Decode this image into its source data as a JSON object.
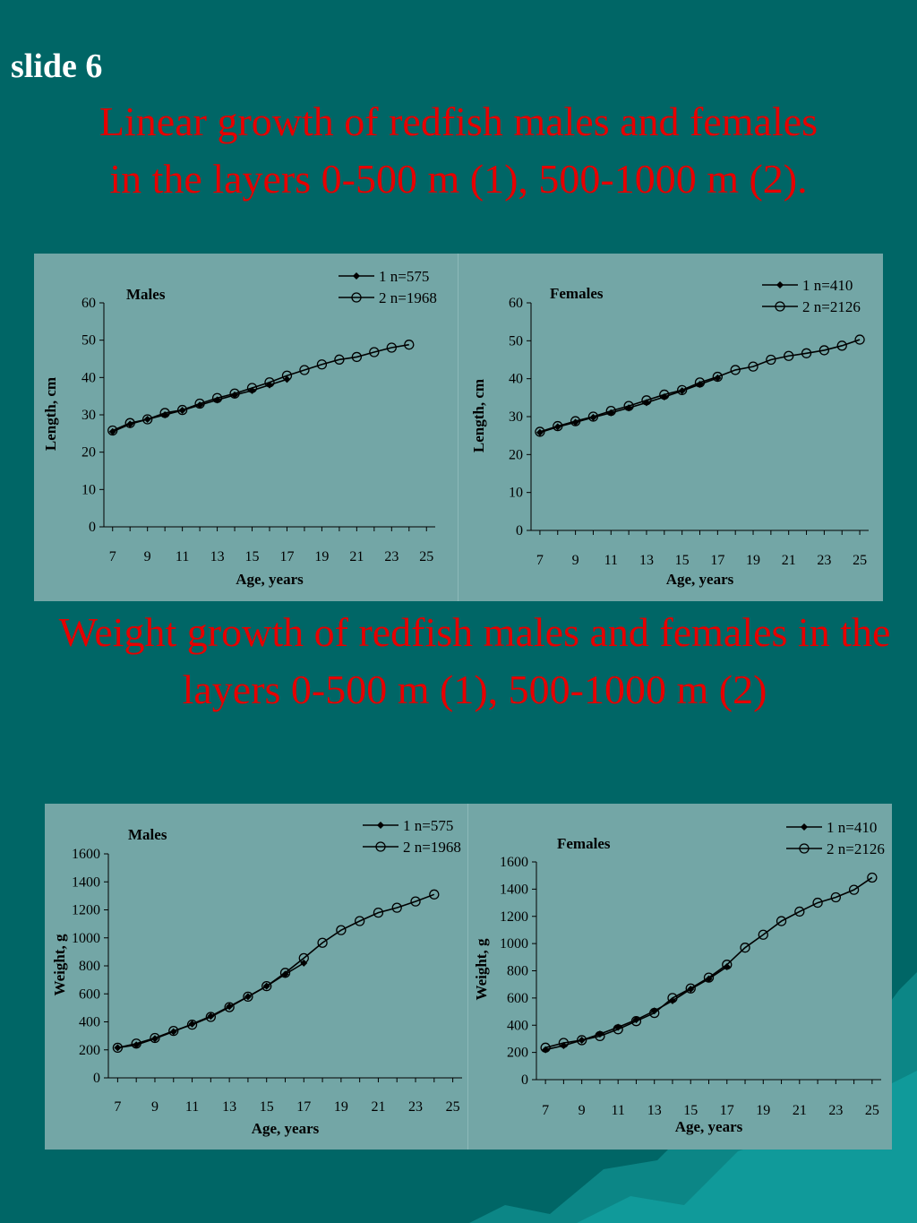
{
  "slide_label": "slide 6",
  "heading_length_a": "Linear growth  of  redfish males and females",
  "heading_length_b": "in the layers 0-500 m (1),  500-1000 m (2)",
  "heading_length_period": ".",
  "heading_weight": "Weight growth  of  redfish males and females in the layers 0-500 m (1), 500-1000 m (2)",
  "colors": {
    "background": "#006666",
    "panel": "#73a6a6",
    "heading": "#e60000",
    "label": "#ffffff"
  },
  "chart_data": [
    {
      "type": "line",
      "title": "Males",
      "xlabel": "Age, years",
      "ylabel": "Length, cm",
      "xlim": [
        6.5,
        25.5
      ],
      "ylim": [
        0,
        60
      ],
      "xticks": [
        "7",
        "9",
        "11",
        "13",
        "15",
        "17",
        "19",
        "21",
        "23",
        "25"
      ],
      "yticks": [
        "0",
        "10",
        "20",
        "30",
        "40",
        "50",
        "60"
      ],
      "legend_position": "top-right",
      "series": [
        {
          "name": "1 n=575",
          "marker": "diamond",
          "x": [
            7,
            8,
            9,
            10,
            11,
            12,
            13,
            14,
            15,
            16,
            17
          ],
          "y": [
            25.5,
            27.5,
            28.8,
            30.0,
            31.2,
            32.6,
            34.0,
            35.3,
            36.5,
            38.0,
            39.5
          ]
        },
        {
          "name": "2 n=1968",
          "marker": "circle",
          "x": [
            7,
            8,
            9,
            10,
            11,
            12,
            13,
            14,
            15,
            16,
            17,
            18,
            19,
            20,
            21,
            22,
            23,
            24
          ],
          "y": [
            25.8,
            27.8,
            28.8,
            30.5,
            31.3,
            33.0,
            34.5,
            35.7,
            37.2,
            38.7,
            40.5,
            42.0,
            43.5,
            44.8,
            45.5,
            46.8,
            48.0,
            48.8
          ]
        }
      ]
    },
    {
      "type": "line",
      "title": "Females",
      "xlabel": "Age, years",
      "ylabel": "Length, cm",
      "xlim": [
        6.5,
        25.5
      ],
      "ylim": [
        0,
        60
      ],
      "xticks": [
        "7",
        "9",
        "11",
        "13",
        "15",
        "17",
        "19",
        "21",
        "23",
        "25"
      ],
      "yticks": [
        "0",
        "10",
        "20",
        "30",
        "40",
        "50",
        "60"
      ],
      "legend_position": "top-right",
      "series": [
        {
          "name": "1 n=410",
          "marker": "diamond",
          "x": [
            7,
            8,
            9,
            10,
            11,
            12,
            13,
            14,
            15,
            16,
            17
          ],
          "y": [
            25.8,
            27.3,
            28.5,
            29.8,
            31.0,
            32.3,
            33.7,
            35.2,
            36.8,
            38.5,
            40.2
          ]
        },
        {
          "name": "2 n=2126",
          "marker": "circle",
          "x": [
            7,
            8,
            9,
            10,
            11,
            12,
            13,
            14,
            15,
            16,
            17,
            18,
            19,
            20,
            21,
            22,
            23,
            24,
            25
          ],
          "y": [
            26.0,
            27.5,
            28.8,
            30.0,
            31.5,
            32.8,
            34.3,
            35.8,
            37.0,
            39.0,
            40.5,
            42.3,
            43.2,
            45.0,
            46.0,
            46.7,
            47.5,
            48.7,
            50.3
          ]
        }
      ]
    },
    {
      "type": "line",
      "title": "Males",
      "xlabel": "Age, years",
      "ylabel": "Weight, g",
      "xlim": [
        6.5,
        25.5
      ],
      "ylim": [
        0,
        1600
      ],
      "xticks": [
        "7",
        "9",
        "11",
        "13",
        "15",
        "17",
        "19",
        "21",
        "23",
        "25"
      ],
      "yticks": [
        "0",
        "200",
        "400",
        "600",
        "800",
        "1000",
        "1200",
        "1400",
        "1600"
      ],
      "legend_position": "top-right",
      "series": [
        {
          "name": "1 n=575",
          "marker": "diamond",
          "x": [
            7,
            8,
            9,
            10,
            11,
            12,
            13,
            14,
            15,
            16,
            17
          ],
          "y": [
            215,
            235,
            280,
            330,
            385,
            440,
            510,
            580,
            655,
            740,
            820
          ]
        },
        {
          "name": "2 n=1968",
          "marker": "circle",
          "x": [
            7,
            8,
            9,
            10,
            11,
            12,
            13,
            14,
            15,
            16,
            17,
            18,
            19,
            20,
            21,
            22,
            23,
            24
          ],
          "y": [
            215,
            245,
            285,
            335,
            380,
            435,
            505,
            580,
            655,
            750,
            855,
            965,
            1055,
            1120,
            1180,
            1215,
            1260,
            1310
          ]
        }
      ]
    },
    {
      "type": "line",
      "title": "Females",
      "xlabel": "Age, years",
      "ylabel": "Weight, g",
      "xlim": [
        6.5,
        25.5
      ],
      "ylim": [
        0,
        1600
      ],
      "xticks": [
        "7",
        "9",
        "11",
        "13",
        "15",
        "17",
        "19",
        "21",
        "23",
        "25"
      ],
      "yticks": [
        "0",
        "200",
        "400",
        "600",
        "800",
        "1000",
        "1200",
        "1400",
        "1600"
      ],
      "legend_position": "top-right",
      "series": [
        {
          "name": "1 n=410",
          "marker": "diamond",
          "x": [
            7,
            8,
            9,
            10,
            11,
            12,
            13,
            14,
            15,
            16,
            17
          ],
          "y": [
            220,
            250,
            290,
            335,
            385,
            440,
            505,
            580,
            665,
            740,
            830
          ]
        },
        {
          "name": "2 n=2126",
          "marker": "circle",
          "x": [
            7,
            8,
            9,
            10,
            11,
            12,
            13,
            14,
            15,
            16,
            17,
            18,
            19,
            20,
            21,
            22,
            23,
            24,
            25
          ],
          "y": [
            235,
            270,
            290,
            320,
            370,
            430,
            490,
            600,
            670,
            750,
            845,
            970,
            1065,
            1165,
            1235,
            1300,
            1340,
            1395,
            1485
          ]
        }
      ]
    }
  ]
}
